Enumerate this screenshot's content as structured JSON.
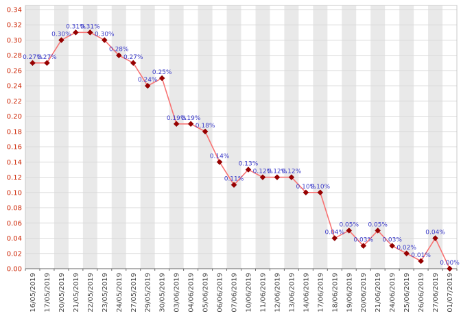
{
  "chart_data": {
    "type": "line",
    "title": "",
    "xlabel": "",
    "ylabel": "",
    "x": [
      "16/05/2019",
      "17/05/2019",
      "20/05/2019",
      "21/05/2019",
      "22/05/2019",
      "23/05/2019",
      "24/05/2019",
      "27/05/2019",
      "29/05/2019",
      "30/05/2019",
      "03/06/2019",
      "04/06/2019",
      "05/06/2019",
      "06/06/2019",
      "07/06/2019",
      "10/06/2019",
      "11/06/2019",
      "12/06/2019",
      "13/06/2019",
      "14/06/2019",
      "17/06/2019",
      "18/06/2019",
      "19/06/2019",
      "20/06/2019",
      "21/06/2019",
      "24/06/2019",
      "25/06/2019",
      "26/06/2019",
      "27/06/2019",
      "01/07/2019"
    ],
    "values": [
      0.27,
      0.27,
      0.3,
      0.31,
      0.31,
      0.3,
      0.28,
      0.27,
      0.24,
      0.25,
      0.19,
      0.19,
      0.18,
      0.14,
      0.11,
      0.13,
      0.12,
      0.12,
      0.12,
      0.1,
      0.1,
      0.04,
      0.05,
      0.03,
      0.05,
      0.03,
      0.02,
      0.01,
      0.04,
      0.0
    ],
    "point_labels": [
      "0.27%",
      "0.27%",
      "0.30%",
      "0.31%",
      "0.31%",
      "0.30%",
      "0.28%",
      "0.27%",
      "0.24%",
      "0.25%",
      "0.19%",
      "0.19%",
      "0.18%",
      "0.14%",
      "0.11%",
      "0.13%",
      "0.12%",
      "0.12%",
      "0.12%",
      "0.10%",
      "0.10%",
      "0.04%",
      "0.05%",
      "0.03%",
      "0.05%",
      "0.03%",
      "0.02%",
      "0.01%",
      "0.04%",
      "0.00%"
    ],
    "ylim": [
      0,
      0.34
    ],
    "ytick_step": 0.02,
    "y_tick_labels": [
      "0.00",
      "0.02",
      "0.04",
      "0.06",
      "0.08",
      "0.10",
      "0.12",
      "0.14",
      "0.16",
      "0.18",
      "0.20",
      "0.22",
      "0.24",
      "0.26",
      "0.28",
      "0.30",
      "0.32",
      "0.34"
    ],
    "grid": true,
    "legend_position": "none",
    "colors": {
      "background": "#ffffff",
      "stripe": "#e9e9e9",
      "grid": "#d9d9d9",
      "plot_border": "#c8c8c8",
      "axis": "#666666",
      "line": "#f87272",
      "marker": "#990000",
      "marker_edge": "#7a0000",
      "point_label": "#3a3ac8",
      "y_tick": "#cc2200",
      "x_tick": "#444444"
    }
  }
}
